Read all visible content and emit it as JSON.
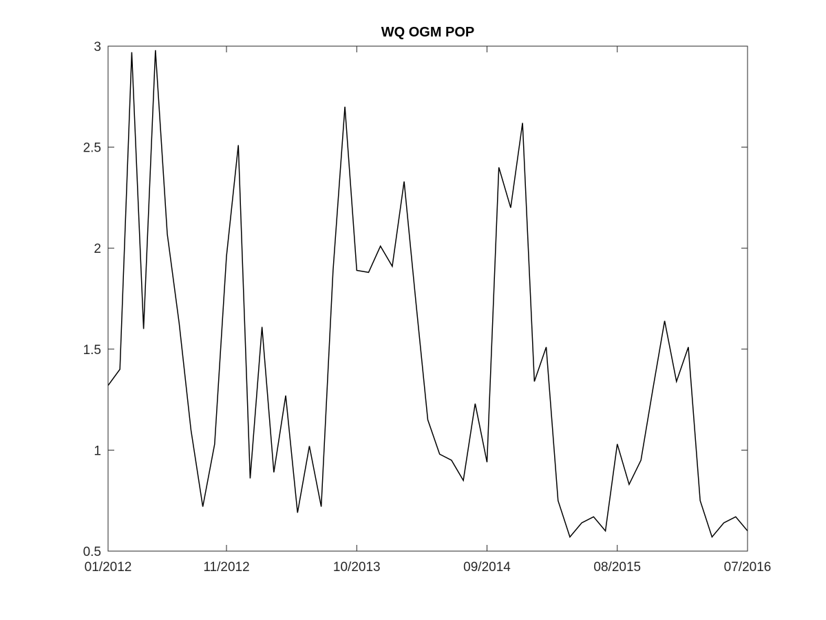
{
  "chart_data": {
    "type": "line",
    "title": "WQ OGM POP",
    "xlabel": "",
    "ylabel": "",
    "xlim": [
      "2012-01",
      "2016-07"
    ],
    "ylim": [
      0.5,
      3
    ],
    "grid": false,
    "x_tick_labels": [
      "01/2012",
      "11/2012",
      "10/2013",
      "09/2014",
      "08/2015",
      "07/2016"
    ],
    "y_tick_labels": [
      "0.5",
      "1",
      "1.5",
      "2",
      "2.5",
      "3"
    ],
    "series": [
      {
        "color": "#000000",
        "x": [
          "2012-01",
          "2012-02",
          "2012-03",
          "2012-04",
          "2012-05",
          "2012-06",
          "2012-07",
          "2012-08",
          "2012-09",
          "2012-10",
          "2012-11",
          "2012-12",
          "2013-01",
          "2013-02",
          "2013-03",
          "2013-04",
          "2013-05",
          "2013-06",
          "2013-07",
          "2013-08",
          "2013-09",
          "2013-10",
          "2013-11",
          "2013-12",
          "2014-01",
          "2014-02",
          "2014-03",
          "2014-04",
          "2014-05",
          "2014-06",
          "2014-07",
          "2014-08",
          "2014-09",
          "2014-10",
          "2014-11",
          "2014-12",
          "2015-01",
          "2015-02",
          "2015-03",
          "2015-04",
          "2015-05",
          "2015-06",
          "2015-07",
          "2015-08",
          "2015-09",
          "2015-10",
          "2015-11",
          "2015-12",
          "2016-01",
          "2016-02",
          "2016-03",
          "2016-04",
          "2016-05",
          "2016-06",
          "2016-07"
        ],
        "values": [
          1.32,
          1.4,
          2.97,
          1.6,
          2.98,
          2.07,
          1.63,
          1.1,
          0.72,
          1.03,
          1.96,
          2.51,
          0.86,
          1.61,
          0.89,
          1.27,
          0.69,
          1.02,
          0.72,
          1.89,
          2.7,
          1.89,
          1.88,
          2.01,
          1.91,
          2.33,
          1.73,
          1.15,
          0.98,
          0.95,
          0.85,
          1.23,
          0.94,
          2.4,
          2.2,
          2.62,
          1.34,
          1.51,
          0.75,
          0.57,
          0.64,
          0.67,
          0.6,
          1.03,
          0.83,
          0.95,
          1.3,
          1.64,
          1.34,
          1.51,
          0.75,
          0.57,
          0.64,
          0.67,
          0.6
        ]
      }
    ]
  }
}
